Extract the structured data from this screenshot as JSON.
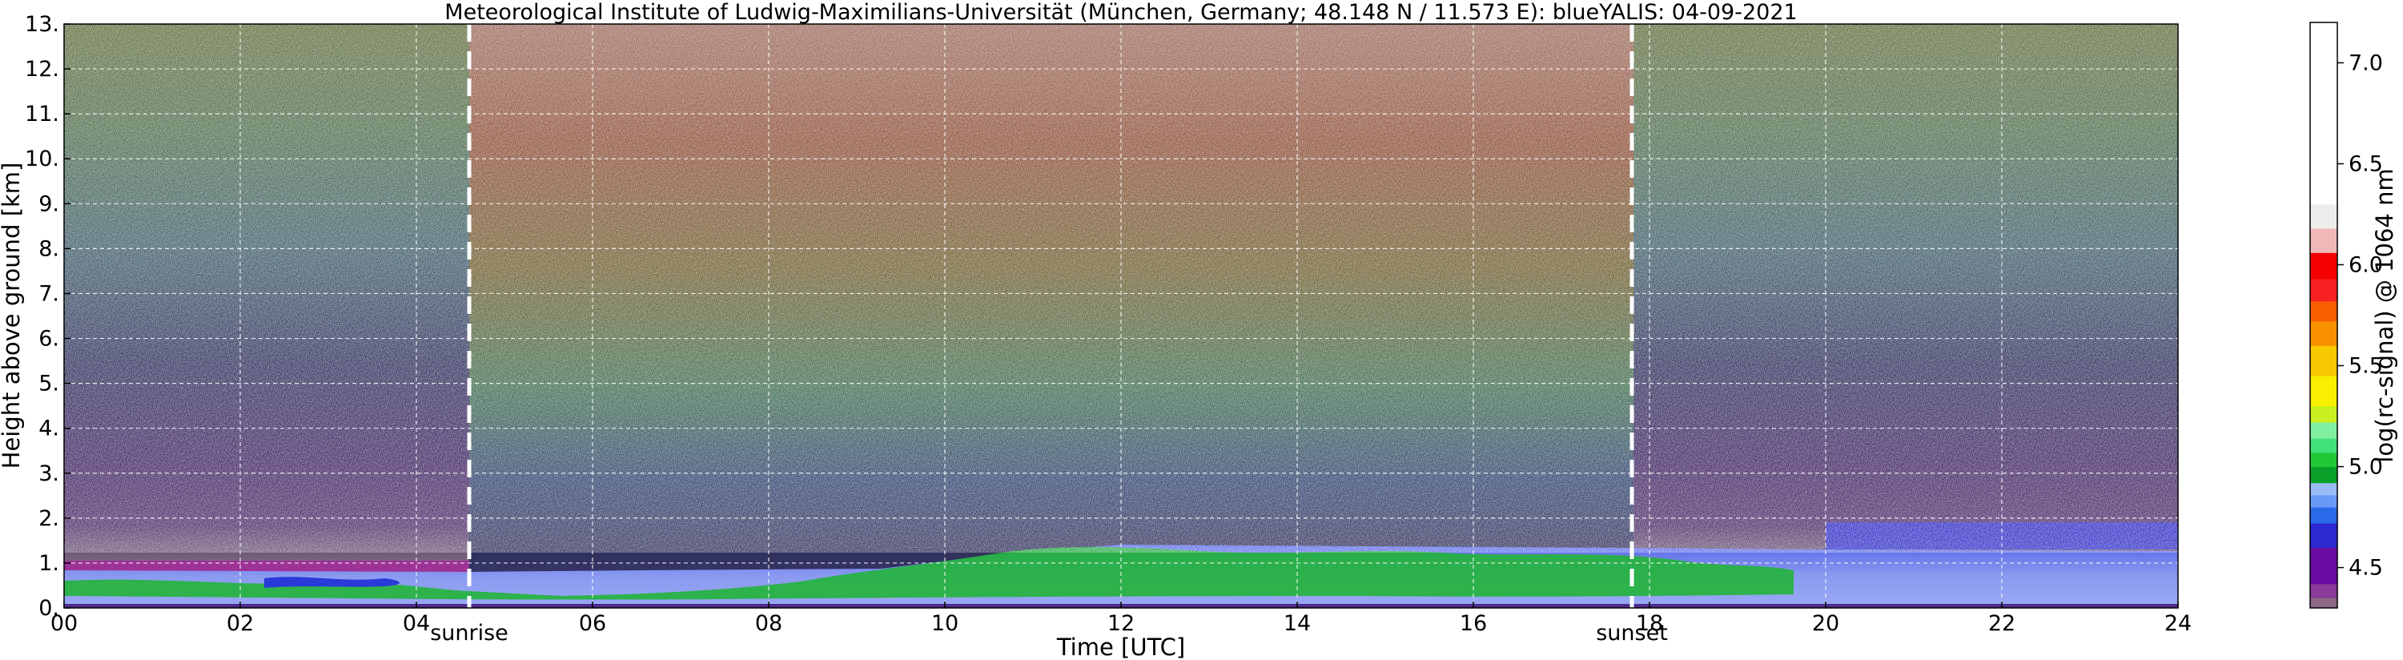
{
  "chart_data": {
    "type": "heatmap",
    "title": "Meteorological Institute of Ludwig-Maximilians-Universität (München, Germany; 48.148 N / 11.573 E):    blueYALIS: 04-09-2021",
    "xlabel": "Time [UTC]",
    "ylabel": "Height above ground [km]",
    "xlim": [
      0,
      24
    ],
    "ylim": [
      0,
      13
    ],
    "x_ticks": [
      "00",
      "02",
      "04",
      "06",
      "08",
      "10",
      "12",
      "14",
      "16",
      "18",
      "20",
      "22",
      "24"
    ],
    "y_ticks": [
      "0.",
      "1.",
      "2.",
      "3.",
      "4.",
      "5.",
      "6.",
      "7.",
      "8.",
      "9.",
      "10.",
      "11.",
      "12.",
      "13."
    ],
    "grid": true,
    "annotations": [
      {
        "label": "sunrise",
        "x": 4.6
      },
      {
        "label": "sunset",
        "x": 17.8
      }
    ],
    "colorbar": {
      "label": "log(rc-signal) @ 1064 nm",
      "range": [
        4.3,
        7.2
      ],
      "ticks": [
        "4.5",
        "5.0",
        "5.5",
        "6.0",
        "6.5",
        "7.0"
      ]
    },
    "layers": [
      {
        "name": "near-ground boundary layer",
        "top_km": 1.0,
        "time_range": [
          0,
          24
        ]
      },
      {
        "name": "aerosol layer (green)",
        "top_km": 1.4,
        "time_range": [
          9,
          19
        ]
      },
      {
        "name": "residual layer (blue band)",
        "top_km": 1.9,
        "time_range": [
          19,
          24
        ]
      }
    ]
  },
  "colors": {
    "night_background": "#2a2245",
    "day_background": "#5a3a2c",
    "boundary_layer": "#7a8cf0",
    "aerosol_green": "#22b43a",
    "layer_blue": "#2a2ad0",
    "colorbar": [
      "#8c6a86",
      "#8a3a98",
      "#6a0aa0",
      "#2a2ad0",
      "#2a6ae8",
      "#6a9af8",
      "#9abaf8",
      "#08a028",
      "#20c838",
      "#40e07a",
      "#80f0a0",
      "#c8f020",
      "#f8f000",
      "#f8c800",
      "#f89000",
      "#f86000",
      "#f82020",
      "#f40000",
      "#f0b8b8",
      "#ececec",
      "#ffffff"
    ]
  }
}
